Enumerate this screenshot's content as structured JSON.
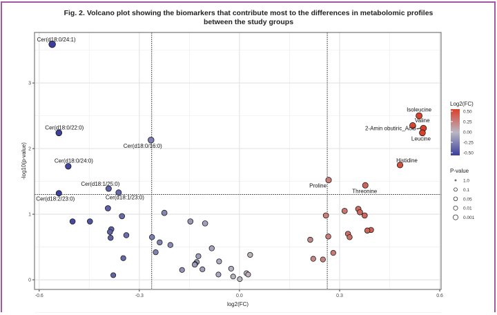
{
  "chart_data": {
    "type": "scatter",
    "title": "Fig. 2. Volcano plot showing the biomarkers that contribute most to the differences in metabolomic profiles",
    "title_line2": "between the study groups",
    "xlabel": "log2(FC)",
    "ylabel": "-log10(p-value)",
    "xlim": [
      -0.614,
      0.604
    ],
    "ylim": [
      -0.147,
      3.77
    ],
    "x_ticks": [
      -0.6,
      -0.3,
      0.0,
      0.3,
      0.6
    ],
    "x_tick_labels": [
      "-0.6",
      "-0.3",
      "0.0",
      "0.3",
      "0.6"
    ],
    "y_ticks": [
      0,
      1,
      2,
      3
    ],
    "y_tick_labels": [
      "0",
      "1",
      "2",
      "3"
    ],
    "grid": true,
    "thresholds": {
      "log2fc": [
        -0.263,
        0.263
      ],
      "neg_log10_p": 1.301
    },
    "color_legend": {
      "title": "Log2(FC)",
      "ticks": [
        "0.50",
        "0.25",
        "0.00",
        "-0.25",
        "-0.50"
      ],
      "low": "#3b3e9c",
      "mid": "#b9b7c2",
      "high": "#d9402b"
    },
    "size_legend": {
      "title": "P-value",
      "labels": [
        "1.0",
        "0.1",
        "0.05",
        "0.01",
        "0.001"
      ]
    },
    "legend_position": "right",
    "points": [
      {
        "x": -0.561,
        "y": 3.59,
        "label": "Cer(d18:0/24:1)"
      },
      {
        "x": -0.541,
        "y": 2.24,
        "label": "Cer(d18:0/22:0)"
      },
      {
        "x": -0.265,
        "y": 2.13,
        "label": "Cer(d18:0/16:0)"
      },
      {
        "x": -0.513,
        "y": 1.73,
        "label": "Cer(d18:0/24:0)"
      },
      {
        "x": -0.392,
        "y": 1.39,
        "label": "Cer(d18:1/25:0)"
      },
      {
        "x": -0.362,
        "y": 1.33,
        "label": "Cer(d18:1/23:0)"
      },
      {
        "x": -0.541,
        "y": 1.32,
        "label": "Cer(d18:2/23:0)"
      },
      {
        "x": 0.538,
        "y": 2.5,
        "label": "Isoleucine"
      },
      {
        "x": 0.519,
        "y": 2.35,
        "label": "Valine"
      },
      {
        "x": 0.551,
        "y": 2.31,
        "label": "2-Amin obutiric_Acid"
      },
      {
        "x": 0.548,
        "y": 2.24,
        "label": "Leucine"
      },
      {
        "x": 0.481,
        "y": 1.75,
        "label": "Histidine"
      },
      {
        "x": 0.267,
        "y": 1.52,
        "label": "Proline"
      },
      {
        "x": 0.377,
        "y": 1.44,
        "label": "Threonine"
      },
      {
        "x": 0.315,
        "y": 1.05
      },
      {
        "x": 0.356,
        "y": 1.08
      },
      {
        "x": 0.361,
        "y": 1.03
      },
      {
        "x": 0.375,
        "y": 0.98
      },
      {
        "x": 0.259,
        "y": 0.98
      },
      {
        "x": 0.394,
        "y": 0.76
      },
      {
        "x": 0.383,
        "y": 0.75
      },
      {
        "x": 0.325,
        "y": 0.7
      },
      {
        "x": 0.33,
        "y": 0.65
      },
      {
        "x": 0.266,
        "y": 0.66
      },
      {
        "x": 0.212,
        "y": 0.61
      },
      {
        "x": 0.281,
        "y": 0.41
      },
      {
        "x": 0.221,
        "y": 0.32
      },
      {
        "x": 0.25,
        "y": 0.31
      },
      {
        "x": -0.394,
        "y": 1.09
      },
      {
        "x": -0.5,
        "y": 0.89
      },
      {
        "x": -0.448,
        "y": 0.89
      },
      {
        "x": -0.352,
        "y": 0.97
      },
      {
        "x": -0.225,
        "y": 1.02
      },
      {
        "x": -0.147,
        "y": 0.89
      },
      {
        "x": -0.103,
        "y": 0.86
      },
      {
        "x": -0.384,
        "y": 0.77
      },
      {
        "x": -0.388,
        "y": 0.73
      },
      {
        "x": -0.386,
        "y": 0.64
      },
      {
        "x": -0.339,
        "y": 0.68
      },
      {
        "x": -0.262,
        "y": 0.65
      },
      {
        "x": -0.239,
        "y": 0.57
      },
      {
        "x": -0.207,
        "y": 0.53
      },
      {
        "x": -0.251,
        "y": 0.42
      },
      {
        "x": -0.083,
        "y": 0.48
      },
      {
        "x": -0.348,
        "y": 0.33
      },
      {
        "x": -0.378,
        "y": 0.07
      },
      {
        "x": -0.123,
        "y": 0.36
      },
      {
        "x": -0.128,
        "y": 0.27
      },
      {
        "x": -0.133,
        "y": 0.24
      },
      {
        "x": -0.134,
        "y": 0.23
      },
      {
        "x": -0.172,
        "y": 0.15
      },
      {
        "x": -0.111,
        "y": 0.16
      },
      {
        "x": -0.061,
        "y": 0.28
      },
      {
        "x": -0.063,
        "y": 0.08
      },
      {
        "x": -0.025,
        "y": 0.17
      },
      {
        "x": -0.019,
        "y": 0.05
      },
      {
        "x": 0.001,
        "y": 0.01
      },
      {
        "x": 0.021,
        "y": 0.1
      },
      {
        "x": 0.026,
        "y": 0.08
      },
      {
        "x": 0.032,
        "y": 0.38
      }
    ]
  }
}
